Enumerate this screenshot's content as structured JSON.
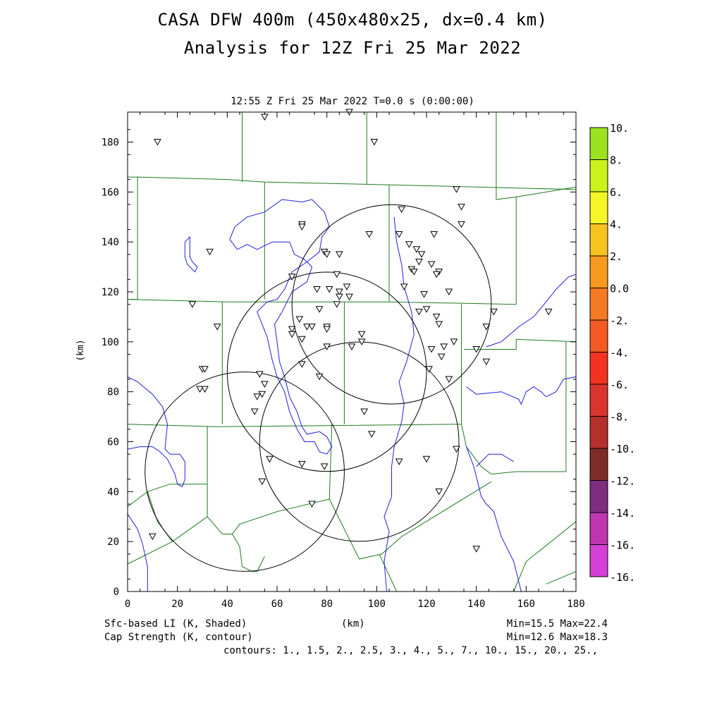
{
  "header": {
    "title_line1": "CASA DFW 400m (450x480x25, dx=0.4 km)",
    "title_line2": "Analysis for 12Z Fri 25 Mar 2022",
    "subtitle": "12:55 Z Fri 25 Mar 2022   T=0.0 s (0:00:00)"
  },
  "footer": {
    "shaded_label": "Sfc-based LI (K, Shaded)",
    "contour_label": "Cap Strength (K, contour)",
    "x_unit": "(km)",
    "shaded_range": "Min=15.5 Max=22.4",
    "contour_range": "Min=12.6 Max=18.3",
    "contours": "contours: 1., 1.5, 2., 2.5, 3., 4., 5., 7., 10., 15., 20., 25.,"
  },
  "chart_data": {
    "type": "map",
    "xlabel": "(km)",
    "ylabel": "(km)",
    "xlim": [
      0,
      180
    ],
    "ylim": [
      0,
      192
    ],
    "x_ticks": [
      0,
      20,
      40,
      60,
      80,
      100,
      120,
      140,
      160,
      180
    ],
    "y_ticks": [
      0,
      20,
      40,
      60,
      80,
      100,
      120,
      140,
      160,
      180
    ],
    "colorbar": {
      "labels": [
        "10.",
        "8.",
        "6.",
        "4.",
        "2.",
        "0.0",
        "-2.",
        "-4.",
        "-6.",
        "-8.",
        "-10.",
        "-12.",
        "-14.",
        "-16."
      ],
      "colors": [
        "#9BE31F",
        "#CCF21C",
        "#F5F527",
        "#F8C31F",
        "#F79A1E",
        "#F57A22",
        "#F45A23",
        "#F1331F",
        "#DA342C",
        "#B5302A",
        "#7E2C28",
        "#7E2E80",
        "#BF36AF",
        "#D63FD8"
      ]
    },
    "radar_circles": [
      {
        "center": [
          106,
          115
        ],
        "radius": 40
      },
      {
        "center": [
          80,
          88
        ],
        "radius": 40
      },
      {
        "center": [
          93,
          60
        ],
        "radius": 40
      },
      {
        "center": [
          47,
          48
        ],
        "radius": 40
      }
    ],
    "stations": [
      [
        12,
        180
      ],
      [
        55,
        190
      ],
      [
        89,
        192
      ],
      [
        99,
        180
      ],
      [
        132,
        161
      ],
      [
        134,
        154
      ],
      [
        134,
        147
      ],
      [
        110,
        153
      ],
      [
        109,
        143
      ],
      [
        113,
        139
      ],
      [
        123,
        143
      ],
      [
        97,
        143
      ],
      [
        70,
        147
      ],
      [
        70,
        146
      ],
      [
        33,
        136
      ],
      [
        79,
        136
      ],
      [
        80,
        135
      ],
      [
        85,
        135
      ],
      [
        116,
        137
      ],
      [
        118,
        135
      ],
      [
        117,
        132
      ],
      [
        122,
        131
      ],
      [
        114,
        129
      ],
      [
        115,
        128
      ],
      [
        125,
        128
      ],
      [
        124,
        127
      ],
      [
        84,
        127
      ],
      [
        66,
        126
      ],
      [
        88,
        122
      ],
      [
        111,
        122
      ],
      [
        76,
        121
      ],
      [
        81,
        121
      ],
      [
        85,
        120
      ],
      [
        85,
        118
      ],
      [
        89,
        118
      ],
      [
        119,
        119
      ],
      [
        129,
        120
      ],
      [
        26,
        115
      ],
      [
        84,
        115
      ],
      [
        77,
        113
      ],
      [
        117,
        112
      ],
      [
        120,
        113
      ],
      [
        124,
        110
      ],
      [
        147,
        112
      ],
      [
        169,
        112
      ],
      [
        125,
        107
      ],
      [
        69,
        109
      ],
      [
        72,
        106
      ],
      [
        74,
        106
      ],
      [
        66,
        105
      ],
      [
        66,
        103
      ],
      [
        36,
        106
      ],
      [
        80,
        106
      ],
      [
        80,
        105
      ],
      [
        144,
        106
      ],
      [
        70,
        101
      ],
      [
        94,
        103
      ],
      [
        94,
        100
      ],
      [
        127,
        98
      ],
      [
        122,
        97
      ],
      [
        140,
        97
      ],
      [
        80,
        98
      ],
      [
        90,
        98
      ],
      [
        131,
        100
      ],
      [
        126,
        94
      ],
      [
        144,
        92
      ],
      [
        70,
        91
      ],
      [
        30,
        89
      ],
      [
        31,
        89
      ],
      [
        121,
        89
      ],
      [
        53,
        87
      ],
      [
        77,
        86
      ],
      [
        129,
        85
      ],
      [
        55,
        83
      ],
      [
        29,
        81
      ],
      [
        31,
        81
      ],
      [
        54,
        79
      ],
      [
        52,
        78
      ],
      [
        51,
        72
      ],
      [
        95,
        72
      ],
      [
        98,
        63
      ],
      [
        132,
        57
      ],
      [
        57,
        53
      ],
      [
        109,
        52
      ],
      [
        70,
        51
      ],
      [
        79,
        50
      ],
      [
        120,
        53
      ],
      [
        125,
        40
      ],
      [
        54,
        44
      ],
      [
        74,
        35
      ],
      [
        10,
        22
      ],
      [
        140,
        17
      ]
    ],
    "county_lines": [
      [
        [
          0,
          166
        ],
        [
          4,
          166
        ],
        [
          4,
          117
        ],
        [
          0,
          117
        ]
      ],
      [
        [
          4,
          166
        ],
        [
          40,
          165
        ],
        [
          55,
          164
        ],
        [
          100,
          163
        ],
        [
          140,
          162
        ],
        [
          180,
          161
        ]
      ],
      [
        [
          46,
          192
        ],
        [
          46,
          164
        ]
      ],
      [
        [
          96,
          192
        ],
        [
          96,
          163
        ]
      ],
      [
        [
          148,
          192
        ],
        [
          148,
          157
        ]
      ],
      [
        [
          148,
          157
        ],
        [
          156,
          158
        ]
      ],
      [
        [
          156,
          158
        ],
        [
          180,
          162
        ]
      ],
      [
        [
          55,
          164
        ],
        [
          55,
          117
        ]
      ],
      [
        [
          105,
          163
        ],
        [
          105,
          116
        ]
      ],
      [
        [
          156,
          158
        ],
        [
          156,
          115
        ]
      ],
      [
        [
          0,
          117
        ],
        [
          40,
          116
        ],
        [
          105,
          116
        ],
        [
          156,
          115
        ]
      ],
      [
        [
          38,
          116
        ],
        [
          38,
          67
        ]
      ],
      [
        [
          87,
          116
        ],
        [
          87,
          67
        ]
      ],
      [
        [
          134,
          115
        ],
        [
          134,
          67
        ]
      ],
      [
        [
          135,
          97
        ],
        [
          156,
          97
        ],
        [
          156,
          101
        ],
        [
          180,
          100
        ]
      ],
      [
        [
          176,
          100
        ],
        [
          176,
          48
        ],
        [
          160,
          48
        ]
      ],
      [
        [
          134,
          67
        ],
        [
          136,
          58
        ],
        [
          142,
          50
        ],
        [
          146,
          47
        ],
        [
          156,
          48
        ],
        [
          160,
          48
        ]
      ],
      [
        [
          0,
          67
        ],
        [
          36,
          66
        ],
        [
          134,
          67
        ]
      ],
      [
        [
          32,
          66
        ],
        [
          32,
          30
        ]
      ],
      [
        [
          0,
          34
        ],
        [
          8,
          40
        ],
        [
          17,
          43
        ],
        [
          32,
          43
        ]
      ],
      [
        [
          8,
          40
        ],
        [
          12,
          28
        ],
        [
          18,
          20
        ],
        [
          32,
          30
        ]
      ],
      [
        [
          0,
          11
        ],
        [
          18,
          20
        ]
      ],
      [
        [
          32,
          30
        ],
        [
          38,
          23
        ],
        [
          42,
          23
        ],
        [
          45,
          27
        ],
        [
          60,
          32
        ],
        [
          81,
          37
        ]
      ],
      [
        [
          81,
          37
        ],
        [
          82,
          67
        ]
      ],
      [
        [
          81,
          37
        ],
        [
          93,
          13
        ],
        [
          102,
          15
        ],
        [
          110,
          22
        ],
        [
          146,
          44
        ]
      ],
      [
        [
          42,
          23
        ],
        [
          45,
          18
        ],
        [
          46,
          10
        ],
        [
          50,
          8
        ],
        [
          52,
          8
        ],
        [
          55,
          14
        ]
      ],
      [
        [
          101,
          15
        ],
        [
          108,
          0
        ]
      ],
      [
        [
          155,
          0
        ],
        [
          160,
          12
        ],
        [
          170,
          20
        ],
        [
          180,
          28
        ]
      ],
      [
        [
          168,
          3
        ],
        [
          180,
          8
        ]
      ]
    ],
    "water_lines": [
      [
        [
          0,
          86
        ],
        [
          4,
          84
        ],
        [
          10,
          79
        ],
        [
          14,
          74
        ],
        [
          16,
          67
        ],
        [
          15,
          57
        ]
      ],
      [
        [
          15,
          57
        ],
        [
          17,
          55
        ],
        [
          21,
          55
        ],
        [
          23,
          52
        ],
        [
          23,
          45
        ],
        [
          22,
          42
        ],
        [
          20,
          43
        ],
        [
          19,
          47
        ],
        [
          16,
          53
        ],
        [
          13,
          56
        ],
        [
          10,
          58
        ],
        [
          5,
          58
        ],
        [
          0,
          57
        ]
      ],
      [
        [
          0,
          31
        ],
        [
          4,
          25
        ],
        [
          6,
          19
        ],
        [
          8,
          10
        ],
        [
          8,
          0
        ]
      ],
      [
        [
          41,
          141
        ],
        [
          43,
          146
        ],
        [
          48,
          150
        ],
        [
          55,
          152
        ],
        [
          62,
          157
        ],
        [
          70,
          156
        ],
        [
          74,
          157
        ],
        [
          79,
          152
        ],
        [
          81,
          146
        ],
        [
          78,
          142
        ],
        [
          77,
          136
        ],
        [
          72,
          132
        ],
        [
          66,
          128
        ],
        [
          63,
          121
        ],
        [
          60,
          117
        ],
        [
          56,
          116
        ],
        [
          52,
          112
        ],
        [
          56,
          102
        ],
        [
          58,
          93
        ],
        [
          60,
          86
        ],
        [
          63,
          80
        ],
        [
          65,
          72
        ],
        [
          68,
          65
        ],
        [
          71,
          60
        ],
        [
          75,
          60
        ],
        [
          77,
          56
        ],
        [
          80,
          55
        ],
        [
          82,
          58
        ],
        [
          80,
          62
        ],
        [
          77,
          64
        ],
        [
          72,
          63
        ],
        [
          70,
          66
        ],
        [
          68,
          72
        ],
        [
          65,
          78
        ],
        [
          63,
          86
        ],
        [
          61,
          92
        ],
        [
          60,
          100
        ],
        [
          59,
          107
        ],
        [
          62,
          112
        ],
        [
          66,
          120
        ],
        [
          72,
          124
        ],
        [
          74,
          130
        ],
        [
          71,
          133
        ],
        [
          67,
          135
        ],
        [
          65,
          140
        ],
        [
          58,
          140
        ],
        [
          52,
          137
        ],
        [
          48,
          139
        ],
        [
          44,
          137
        ],
        [
          41,
          141
        ]
      ],
      [
        [
          23,
          140
        ],
        [
          25,
          142
        ],
        [
          25,
          134
        ],
        [
          26,
          132
        ],
        [
          28,
          130
        ],
        [
          27,
          128
        ],
        [
          24,
          131
        ],
        [
          23,
          134
        ],
        [
          23,
          140
        ]
      ],
      [
        [
          107,
          150
        ],
        [
          108,
          140
        ],
        [
          110,
          131
        ],
        [
          111,
          122
        ],
        [
          114,
          112
        ],
        [
          115,
          103
        ],
        [
          112,
          92
        ],
        [
          109,
          84
        ],
        [
          111,
          75
        ],
        [
          110,
          68
        ],
        [
          107,
          58
        ],
        [
          106,
          50
        ],
        [
          106,
          38
        ],
        [
          103,
          30
        ],
        [
          105,
          24
        ],
        [
          103,
          12
        ],
        [
          104,
          0
        ]
      ],
      [
        [
          136,
          82
        ],
        [
          140,
          79
        ],
        [
          150,
          80
        ],
        [
          157,
          77
        ],
        [
          158,
          75
        ],
        [
          160,
          80
        ],
        [
          163,
          82
        ],
        [
          166,
          80
        ],
        [
          168,
          78
        ],
        [
          172,
          80
        ],
        [
          175,
          85
        ],
        [
          180,
          86
        ]
      ],
      [
        [
          136,
          58
        ],
        [
          139,
          50
        ],
        [
          142,
          38
        ],
        [
          144,
          35
        ],
        [
          147,
          32
        ],
        [
          150,
          22
        ],
        [
          155,
          12
        ],
        [
          158,
          0
        ]
      ],
      [
        [
          140,
          50
        ],
        [
          145,
          55
        ],
        [
          150,
          55
        ],
        [
          155,
          52
        ]
      ],
      [
        [
          144,
          98
        ],
        [
          150,
          100
        ],
        [
          157,
          106
        ],
        [
          163,
          110
        ],
        [
          168,
          116
        ],
        [
          172,
          121
        ],
        [
          177,
          126
        ],
        [
          180,
          127
        ]
      ]
    ]
  }
}
